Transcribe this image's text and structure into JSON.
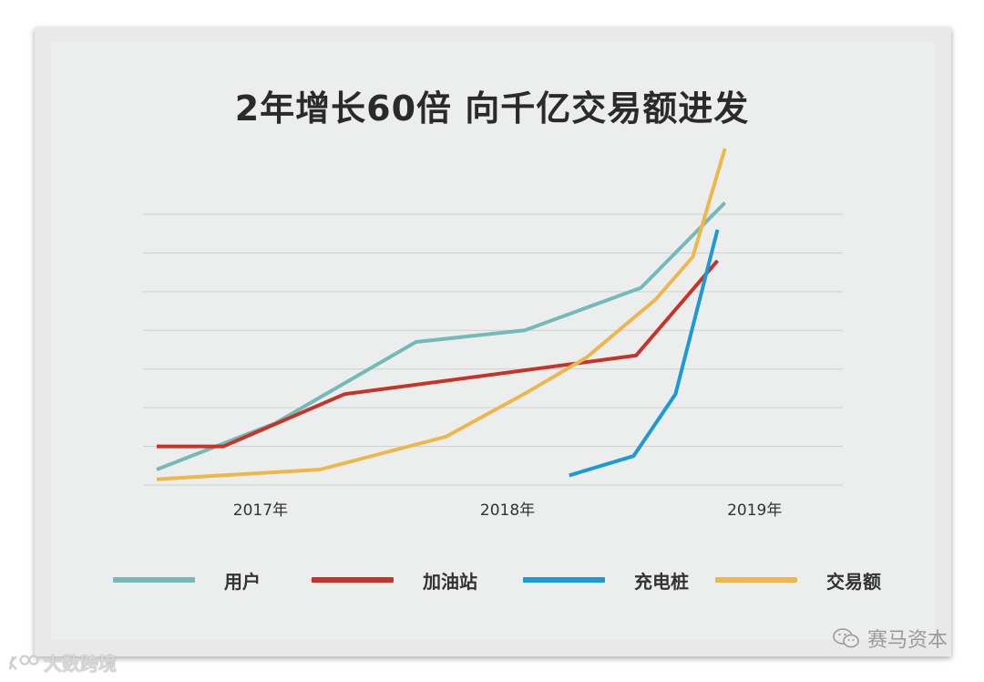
{
  "chart_data": {
    "type": "line",
    "title": "2年增长60倍  向千亿交易额进发",
    "categories": [
      "2017年",
      "2018年",
      "2019年"
    ],
    "xlabel": "",
    "ylabel": "",
    "x_range": [
      2016.94,
      2019.61
    ],
    "ylim": [
      0,
      7
    ],
    "grid": true,
    "legend_position": "bottom",
    "series": [
      {
        "name": "用户",
        "color": "#74bab6",
        "points": [
          [
            2016.94,
            0.4
          ],
          [
            2017.42,
            1.6
          ],
          [
            2017.99,
            3.7
          ],
          [
            2018.43,
            4.0
          ],
          [
            2018.9,
            5.1
          ],
          [
            2019.24,
            7.3
          ]
        ]
      },
      {
        "name": "加油站",
        "color": "#c83228",
        "points": [
          [
            2016.94,
            1.0
          ],
          [
            2017.21,
            1.0
          ],
          [
            2017.7,
            2.35
          ],
          [
            2018.88,
            3.35
          ],
          [
            2019.21,
            5.8
          ]
        ]
      },
      {
        "name": "充电桩",
        "color": "#1a9ad6",
        "points": [
          [
            2018.61,
            0.25
          ],
          [
            2018.87,
            0.75
          ],
          [
            2019.04,
            2.35
          ],
          [
            2019.21,
            6.6
          ]
        ]
      },
      {
        "name": "交易额",
        "color": "#edb74e",
        "points": [
          [
            2016.94,
            0.15
          ],
          [
            2017.6,
            0.4
          ],
          [
            2018.11,
            1.25
          ],
          [
            2018.44,
            2.4
          ],
          [
            2018.68,
            3.3
          ],
          [
            2018.96,
            4.8
          ],
          [
            2019.11,
            5.9
          ],
          [
            2019.24,
            8.7
          ]
        ]
      }
    ]
  },
  "watermark": {
    "brand": "赛马资本",
    "source": "大数跨境"
  }
}
